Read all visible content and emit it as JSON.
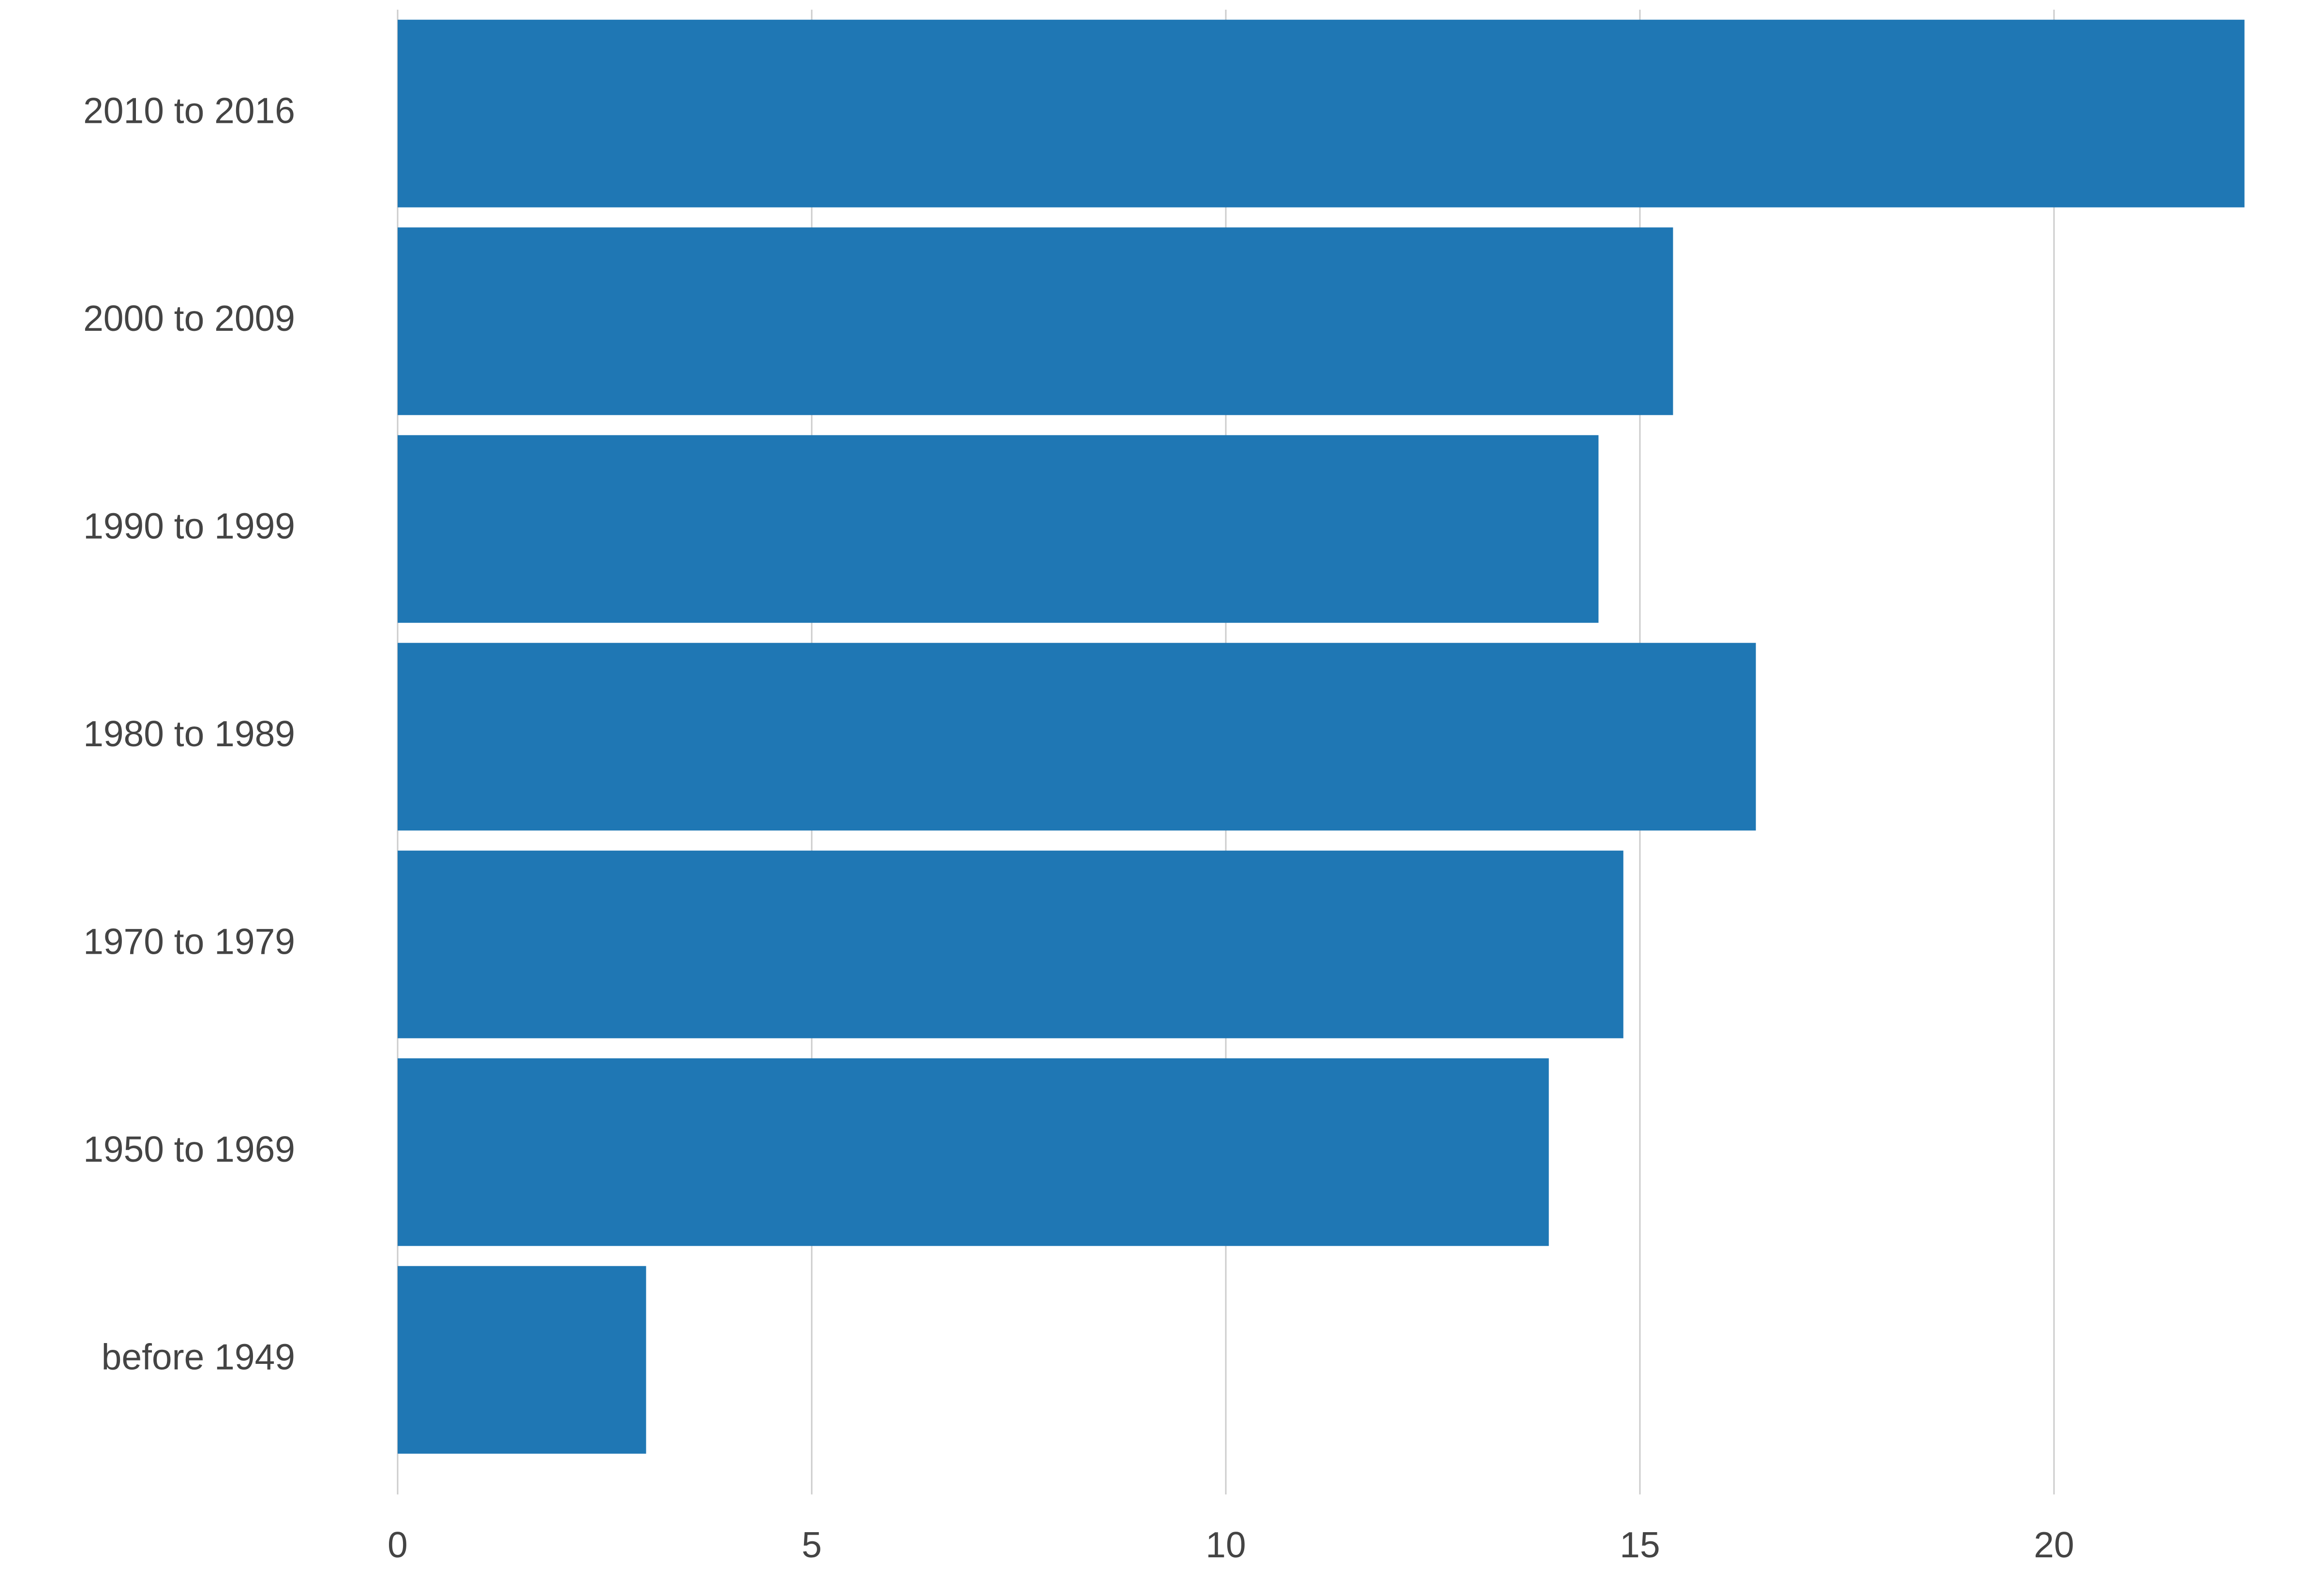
{
  "chart_data": {
    "type": "bar",
    "orientation": "horizontal",
    "categories": [
      "2010 to 2016",
      "2000 to 2009",
      "1990 to 1999",
      "1980 to 1989",
      "1970 to 1979",
      "1950 to 1969",
      "before 1949"
    ],
    "values": [
      22.3,
      15.4,
      14.5,
      16.4,
      14.8,
      13.9,
      3.0
    ],
    "xlim": [
      0,
      22.5
    ],
    "xticks": [
      0,
      5,
      10,
      15,
      20
    ],
    "xtick_labels": [
      "0",
      "5",
      "10",
      "15",
      "20"
    ],
    "grid": "vertical",
    "legend": "none",
    "bar_color": "#1f77b4",
    "grid_color": "#cccccc",
    "label_color": "#444444"
  }
}
